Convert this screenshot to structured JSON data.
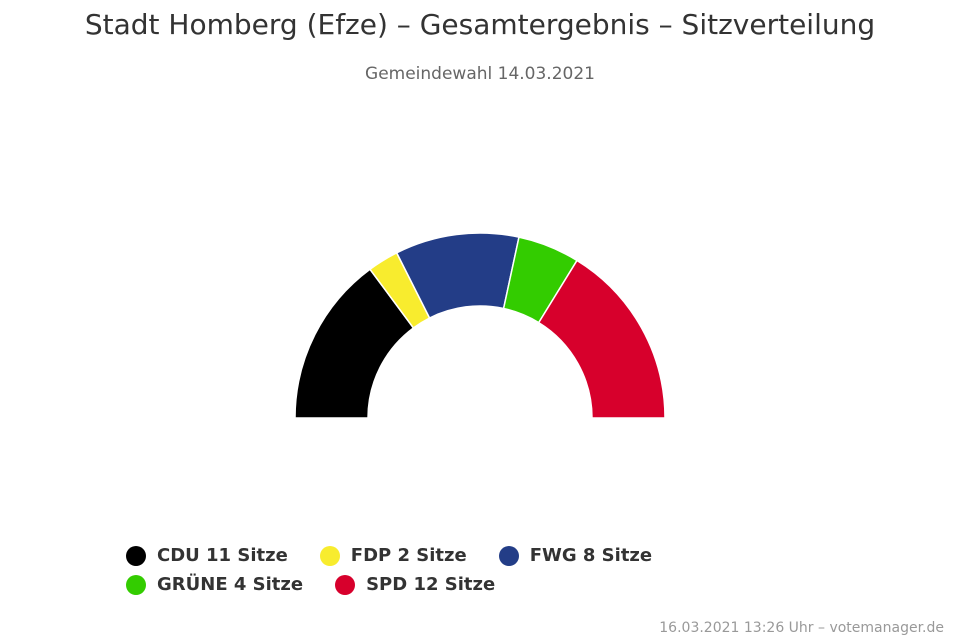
{
  "title": "Stadt Homberg (Efze) – Gesamtergebnis – Sitzverteilung",
  "subtitle": "Gemeindewahl 14.03.2021",
  "credits": "16.03.2021 13:26 Uhr – votemanager.de",
  "chart_data": {
    "type": "pie",
    "variant": "semicircle-parliament",
    "unit": "Sitze",
    "categories": [
      "CDU",
      "FDP",
      "FWG",
      "GRÜNE",
      "SPD"
    ],
    "values": [
      11,
      2,
      8,
      4,
      12
    ],
    "colors": [
      "#000000",
      "#f8ec2e",
      "#233d87",
      "#33cc00",
      "#d7002c"
    ],
    "legend_labels": [
      "CDU 11 Sitze",
      "FDP 2 Sitze",
      "FWG 8 Sitze",
      "GRÜNE 4 Sitze",
      "SPD 12 Sitze"
    ],
    "legend_placement": "bottom"
  }
}
